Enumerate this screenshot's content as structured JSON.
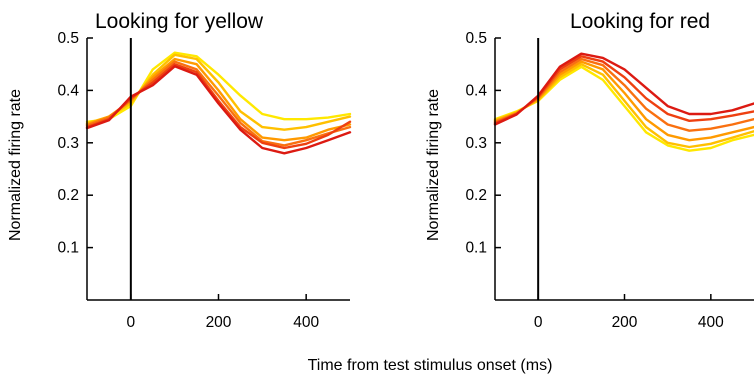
{
  "figure": {
    "shared_xlabel": "Time from test stimulus onset (ms)"
  },
  "colors": {
    "axis": "#000000",
    "series_palette": [
      "#ffe800",
      "#ffc000",
      "#ff9a00",
      "#f97010",
      "#ee4010",
      "#dc1a12"
    ]
  },
  "chart_data": [
    {
      "type": "line",
      "title": "Looking for yellow",
      "xlabel": "",
      "ylabel": "Normalized firing rate",
      "xlim": [
        -100,
        500
      ],
      "ylim": [
        0,
        0.5
      ],
      "xticks": [
        0,
        200,
        400
      ],
      "yticks": [
        0.1,
        0.2,
        0.3,
        0.4,
        0.5
      ],
      "onset_line_x": 0,
      "grid": false,
      "legend": "none",
      "x": [
        -100,
        -50,
        0,
        50,
        100,
        150,
        200,
        250,
        300,
        350,
        400,
        450,
        500
      ],
      "series": [
        {
          "color": "#ffe800",
          "values": [
            0.34,
            0.345,
            0.37,
            0.44,
            0.472,
            0.465,
            0.43,
            0.39,
            0.355,
            0.345,
            0.345,
            0.348,
            0.355
          ]
        },
        {
          "color": "#ffc000",
          "values": [
            0.337,
            0.35,
            0.375,
            0.43,
            0.468,
            0.46,
            0.415,
            0.36,
            0.33,
            0.325,
            0.33,
            0.34,
            0.35
          ]
        },
        {
          "color": "#ff9a00",
          "values": [
            0.335,
            0.35,
            0.38,
            0.425,
            0.46,
            0.45,
            0.4,
            0.345,
            0.31,
            0.305,
            0.31,
            0.325,
            0.335
          ]
        },
        {
          "color": "#f97010",
          "values": [
            0.333,
            0.348,
            0.382,
            0.42,
            0.455,
            0.44,
            0.39,
            0.338,
            0.303,
            0.295,
            0.305,
            0.318,
            0.33
          ]
        },
        {
          "color": "#ee4010",
          "values": [
            0.33,
            0.345,
            0.385,
            0.415,
            0.45,
            0.435,
            0.38,
            0.33,
            0.3,
            0.29,
            0.298,
            0.315,
            0.34
          ]
        },
        {
          "color": "#dc1a12",
          "values": [
            0.328,
            0.343,
            0.388,
            0.41,
            0.446,
            0.43,
            0.375,
            0.325,
            0.29,
            0.28,
            0.29,
            0.305,
            0.32
          ]
        }
      ]
    },
    {
      "type": "line",
      "title": "Looking for red",
      "xlabel": "",
      "ylabel": "Normalized firing rate",
      "xlim": [
        -100,
        500
      ],
      "ylim": [
        0,
        0.5
      ],
      "xticks": [
        0,
        200,
        400
      ],
      "yticks": [
        0.1,
        0.2,
        0.3,
        0.4,
        0.5
      ],
      "onset_line_x": 0,
      "grid": false,
      "legend": "none",
      "x": [
        -100,
        -50,
        0,
        50,
        100,
        150,
        200,
        250,
        300,
        350,
        400,
        450,
        500
      ],
      "series": [
        {
          "color": "#ffe800",
          "values": [
            0.345,
            0.36,
            0.38,
            0.42,
            0.445,
            0.42,
            0.37,
            0.32,
            0.295,
            0.285,
            0.29,
            0.305,
            0.315
          ]
        },
        {
          "color": "#ffc000",
          "values": [
            0.343,
            0.358,
            0.382,
            0.425,
            0.45,
            0.43,
            0.38,
            0.33,
            0.3,
            0.292,
            0.298,
            0.31,
            0.322
          ]
        },
        {
          "color": "#ff9a00",
          "values": [
            0.341,
            0.357,
            0.384,
            0.43,
            0.455,
            0.44,
            0.395,
            0.345,
            0.315,
            0.305,
            0.31,
            0.32,
            0.33
          ]
        },
        {
          "color": "#f97010",
          "values": [
            0.339,
            0.356,
            0.386,
            0.435,
            0.46,
            0.448,
            0.41,
            0.365,
            0.335,
            0.323,
            0.327,
            0.335,
            0.345
          ]
        },
        {
          "color": "#ee4010",
          "values": [
            0.337,
            0.355,
            0.388,
            0.44,
            0.465,
            0.455,
            0.425,
            0.385,
            0.355,
            0.342,
            0.345,
            0.352,
            0.36
          ]
        },
        {
          "color": "#dc1a12",
          "values": [
            0.335,
            0.354,
            0.39,
            0.445,
            0.47,
            0.462,
            0.44,
            0.405,
            0.37,
            0.355,
            0.355,
            0.362,
            0.375
          ]
        }
      ]
    }
  ]
}
